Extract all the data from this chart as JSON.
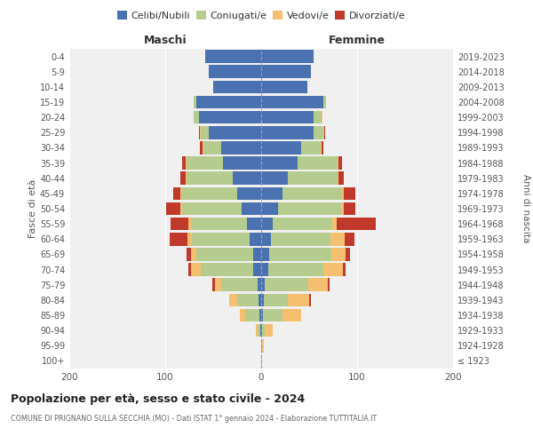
{
  "age_groups": [
    "100+",
    "95-99",
    "90-94",
    "85-89",
    "80-84",
    "75-79",
    "70-74",
    "65-69",
    "60-64",
    "55-59",
    "50-54",
    "45-49",
    "40-44",
    "35-39",
    "30-34",
    "25-29",
    "20-24",
    "15-19",
    "10-14",
    "5-9",
    "0-4"
  ],
  "birth_years": [
    "≤ 1923",
    "1924-1928",
    "1929-1933",
    "1934-1938",
    "1939-1943",
    "1944-1948",
    "1949-1953",
    "1954-1958",
    "1959-1963",
    "1964-1968",
    "1969-1973",
    "1974-1978",
    "1979-1983",
    "1984-1988",
    "1989-1993",
    "1994-1998",
    "1999-2003",
    "2004-2008",
    "2009-2013",
    "2014-2018",
    "2019-2023"
  ],
  "male_celibi": [
    0,
    0,
    1,
    2,
    3,
    4,
    8,
    8,
    12,
    15,
    20,
    25,
    30,
    40,
    42,
    55,
    65,
    68,
    50,
    55,
    58
  ],
  "male_coniugati": [
    0,
    0,
    3,
    15,
    22,
    38,
    55,
    60,
    60,
    58,
    62,
    58,
    48,
    38,
    18,
    8,
    5,
    2,
    0,
    0,
    0
  ],
  "male_vedovi": [
    0,
    0,
    2,
    5,
    8,
    6,
    10,
    5,
    5,
    3,
    2,
    1,
    1,
    1,
    1,
    1,
    0,
    0,
    0,
    0,
    0
  ],
  "male_divorziati": [
    0,
    0,
    0,
    0,
    0,
    3,
    3,
    5,
    18,
    18,
    15,
    8,
    5,
    3,
    3,
    1,
    0,
    0,
    0,
    0,
    0
  ],
  "female_celibi": [
    0,
    0,
    1,
    2,
    3,
    4,
    7,
    8,
    10,
    12,
    18,
    22,
    28,
    38,
    42,
    55,
    55,
    65,
    48,
    52,
    55
  ],
  "female_coniugati": [
    0,
    1,
    3,
    20,
    25,
    45,
    58,
    65,
    62,
    62,
    65,
    62,
    52,
    42,
    20,
    10,
    8,
    3,
    0,
    0,
    0
  ],
  "female_vedovi": [
    1,
    2,
    8,
    20,
    22,
    20,
    20,
    15,
    15,
    5,
    3,
    2,
    1,
    1,
    1,
    1,
    1,
    0,
    0,
    0,
    0
  ],
  "female_divorziati": [
    0,
    0,
    0,
    0,
    2,
    2,
    3,
    5,
    10,
    40,
    12,
    12,
    5,
    3,
    2,
    1,
    0,
    0,
    0,
    0,
    0
  ],
  "colors": {
    "celibi": "#4a72b0",
    "coniugati": "#b5cc8e",
    "vedovi": "#f4c06f",
    "divorziati": "#c0392b"
  },
  "xlim": 200,
  "title": "Popolazione per età, sesso e stato civile - 2024",
  "subtitle": "COMUNE DI PRIGNANO SULLA SECCHIA (MO) - Dati ISTAT 1° gennaio 2024 - Elaborazione TUTTITALIA.IT",
  "ylabel": "Fasce di età",
  "ylabel_right": "Anni di nascita",
  "xlabel_left": "Maschi",
  "xlabel_right": "Femmine",
  "legend_labels": [
    "Celibi/Nubili",
    "Coniugati/e",
    "Vedovi/e",
    "Divorziati/e"
  ],
  "bg_color": "#f0f0f0",
  "fig_color": "#ffffff"
}
